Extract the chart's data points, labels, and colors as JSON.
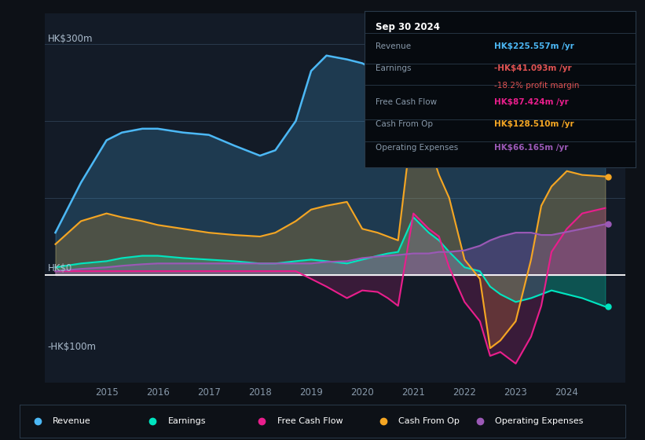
{
  "bg_color": "#0d1117",
  "plot_bg_color": "#131b27",
  "ylabel_top": "HK$300m",
  "ylabel_zero": "HK$0",
  "ylabel_bot": "-HK$100m",
  "years": [
    2014.0,
    2014.5,
    2015.0,
    2015.3,
    2015.7,
    2016.0,
    2016.5,
    2017.0,
    2017.5,
    2018.0,
    2018.3,
    2018.7,
    2019.0,
    2019.3,
    2019.7,
    2020.0,
    2020.3,
    2020.5,
    2020.7,
    2021.0,
    2021.3,
    2021.5,
    2021.7,
    2022.0,
    2022.3,
    2022.5,
    2022.7,
    2023.0,
    2023.3,
    2023.5,
    2023.7,
    2024.0,
    2024.3,
    2024.75
  ],
  "revenue": [
    55,
    120,
    175,
    185,
    190,
    190,
    185,
    182,
    168,
    155,
    162,
    200,
    265,
    285,
    280,
    275,
    265,
    250,
    245,
    242,
    237,
    232,
    228,
    218,
    222,
    232,
    250,
    265,
    268,
    260,
    255,
    262,
    260,
    225
  ],
  "earnings": [
    10,
    15,
    18,
    22,
    25,
    25,
    22,
    20,
    18,
    15,
    15,
    18,
    20,
    18,
    15,
    20,
    25,
    28,
    30,
    75,
    55,
    45,
    30,
    10,
    5,
    -15,
    -25,
    -35,
    -30,
    -25,
    -20,
    -25,
    -30,
    -41
  ],
  "free_cash_flow": [
    5,
    5,
    5,
    5,
    5,
    5,
    5,
    5,
    5,
    5,
    5,
    5,
    -5,
    -15,
    -30,
    -20,
    -22,
    -30,
    -40,
    80,
    60,
    50,
    10,
    -35,
    -60,
    -105,
    -100,
    -115,
    -80,
    -40,
    30,
    60,
    80,
    87
  ],
  "cash_from_op": [
    40,
    70,
    80,
    75,
    70,
    65,
    60,
    55,
    52,
    50,
    55,
    70,
    85,
    90,
    95,
    60,
    55,
    50,
    45,
    210,
    170,
    130,
    100,
    20,
    -5,
    -95,
    -85,
    -60,
    20,
    90,
    115,
    135,
    130,
    128
  ],
  "op_expenses": [
    5,
    8,
    10,
    12,
    14,
    15,
    15,
    15,
    15,
    15,
    15,
    15,
    15,
    17,
    18,
    22,
    24,
    25,
    26,
    28,
    28,
    30,
    30,
    32,
    38,
    45,
    50,
    55,
    55,
    52,
    52,
    56,
    60,
    66
  ],
  "revenue_color": "#4cb8f5",
  "earnings_color": "#00e5c0",
  "fcf_color": "#e91e8c",
  "cashop_color": "#f5a623",
  "opex_color": "#9b59b6",
  "ylim_min": -140,
  "ylim_max": 340,
  "grid_lines": [
    100,
    200,
    300
  ],
  "info_box": {
    "title": "Sep 30 2024",
    "rows": [
      {
        "label": "Revenue",
        "value": "HK$225.557m /yr",
        "value_color": "#4cb8f5"
      },
      {
        "label": "Earnings",
        "value": "-HK$41.093m /yr",
        "value_color": "#e05252"
      },
      {
        "label": "",
        "value": "-18.2% profit margin",
        "value_color": "#e05252"
      },
      {
        "label": "Free Cash Flow",
        "value": "HK$87.424m /yr",
        "value_color": "#e91e8c"
      },
      {
        "label": "Cash From Op",
        "value": "HK$128.510m /yr",
        "value_color": "#f5a623"
      },
      {
        "label": "Operating Expenses",
        "value": "HK$66.165m /yr",
        "value_color": "#9b59b6"
      }
    ]
  },
  "legend": [
    {
      "label": "Revenue",
      "color": "#4cb8f5"
    },
    {
      "label": "Earnings",
      "color": "#00e5c0"
    },
    {
      "label": "Free Cash Flow",
      "color": "#e91e8c"
    },
    {
      "label": "Cash From Op",
      "color": "#f5a623"
    },
    {
      "label": "Operating Expenses",
      "color": "#9b59b6"
    }
  ],
  "xticks": [
    2015,
    2016,
    2017,
    2018,
    2019,
    2020,
    2021,
    2022,
    2023,
    2024
  ]
}
